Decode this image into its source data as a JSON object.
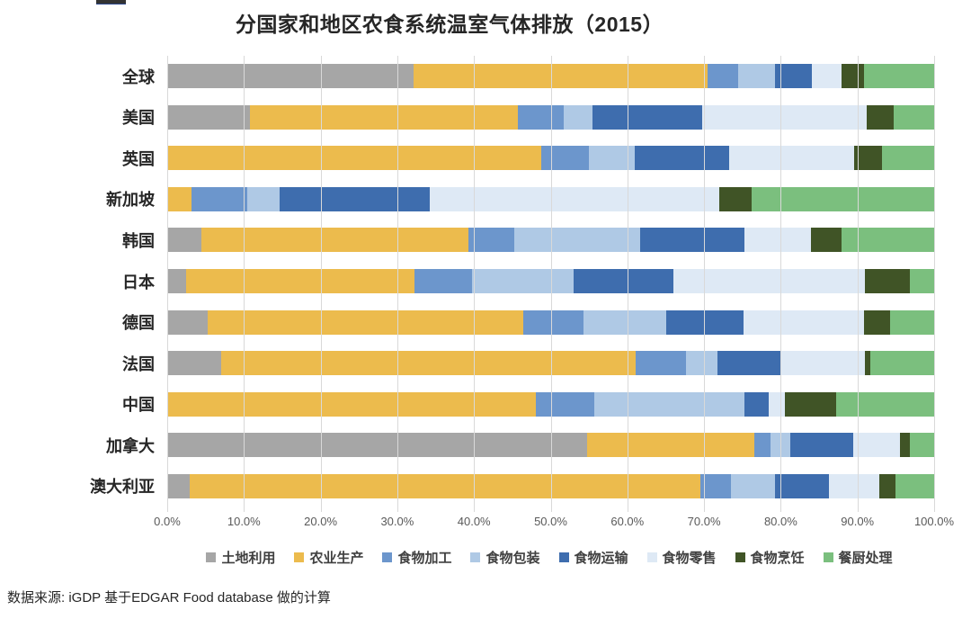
{
  "source": "数据来源: iGDP 基于EDGAR Food database 做的计算",
  "chart_data": {
    "type": "bar",
    "orientation": "horizontal-stacked",
    "title": "分国家和地区农食系统温室气体排放（2015）",
    "xlabel": "",
    "ylabel": "",
    "xlim": [
      0,
      100
    ],
    "grid": true,
    "legend_position": "bottom",
    "x_ticks": [
      "0.0%",
      "10.0%",
      "20.0%",
      "30.0%",
      "40.0%",
      "50.0%",
      "60.0%",
      "70.0%",
      "80.0%",
      "90.0%",
      "100.0%"
    ],
    "categories": [
      "全球",
      "美国",
      "英国",
      "新加坡",
      "韩国",
      "日本",
      "德国",
      "法国",
      "中国",
      "加拿大",
      "澳大利亚"
    ],
    "series": [
      {
        "name": "土地利用",
        "color": "#A6A6A6",
        "values": [
          32.1,
          10.8,
          0,
          0,
          4.5,
          2.5,
          5.3,
          7.0,
          0,
          54.7,
          2.9
        ]
      },
      {
        "name": "农业生产",
        "color": "#ECBB4D",
        "values": [
          38.3,
          34.9,
          48.8,
          3.2,
          34.8,
          29.7,
          41.1,
          54.1,
          48.1,
          21.9,
          66.6
        ]
      },
      {
        "name": "食物加工",
        "color": "#6C96CC",
        "values": [
          4.1,
          6.0,
          6.2,
          7.2,
          6.0,
          7.5,
          7.9,
          6.6,
          7.6,
          2.1,
          4.0
        ]
      },
      {
        "name": "食物包装",
        "color": "#AFC9E5",
        "values": [
          4.8,
          3.8,
          6.0,
          4.2,
          16.4,
          13.3,
          10.8,
          4.1,
          19.6,
          2.6,
          5.8
        ]
      },
      {
        "name": "食物运输",
        "color": "#3E6DAE",
        "values": [
          4.8,
          14.3,
          12.3,
          19.6,
          13.6,
          13.0,
          10.0,
          8.1,
          3.1,
          8.1,
          7.0
        ]
      },
      {
        "name": "食物零售",
        "color": "#DEE9F5",
        "values": [
          3.8,
          21.4,
          16.3,
          37.8,
          8.6,
          25.0,
          15.8,
          11.1,
          2.2,
          6.2,
          6.6
        ]
      },
      {
        "name": "食物烹饪",
        "color": "#405426",
        "values": [
          3.0,
          3.5,
          3.6,
          4.2,
          4.0,
          5.9,
          3.4,
          0.7,
          6.6,
          1.3,
          2.1
        ]
      },
      {
        "name": "餐厨处理",
        "color": "#7BBF7E",
        "values": [
          9.1,
          5.3,
          6.8,
          23.8,
          12.1,
          3.1,
          5.7,
          8.3,
          12.8,
          3.1,
          5.0
        ]
      }
    ]
  }
}
